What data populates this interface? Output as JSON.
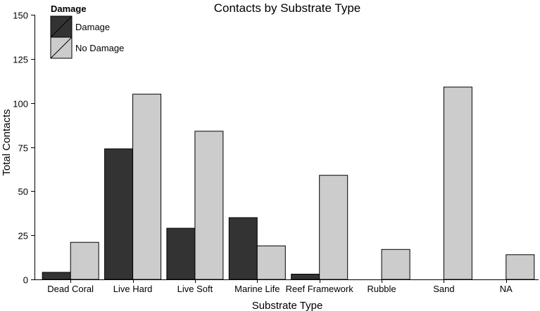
{
  "chart_data": {
    "type": "bar",
    "title": "Contacts by Substrate Type",
    "xlabel": "Substrate Type",
    "ylabel": "Total Contacts",
    "ylim": [
      0,
      150
    ],
    "yticks": [
      "0",
      "25",
      "50",
      "75",
      "100",
      "125",
      "150"
    ],
    "legend": {
      "title": "Damage",
      "placement": "top-left",
      "entries": [
        "Damage",
        "No Damage"
      ]
    },
    "categories": [
      "Dead Coral",
      "Live Hard",
      "Live Soft",
      "Marine Life",
      "Reef Framework",
      "Rubble",
      "Sand",
      "NA"
    ],
    "series": [
      {
        "name": "Damage",
        "color": "#333333",
        "values": [
          4,
          74,
          29,
          35,
          3,
          null,
          null,
          null
        ]
      },
      {
        "name": "No Damage",
        "color": "#cccccc",
        "values": [
          21,
          105,
          84,
          19,
          59,
          17,
          109,
          14
        ]
      }
    ],
    "grid": false
  }
}
